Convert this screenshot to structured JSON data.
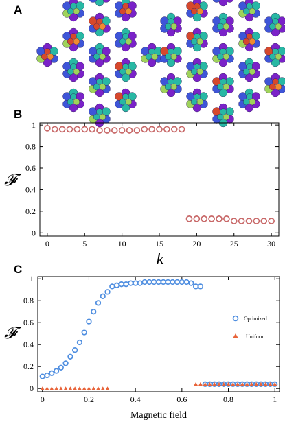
{
  "panel_a": {
    "label": "A",
    "colors": {
      "purple": "#7a22c8",
      "blue": "#3e55d8",
      "teal": "#28b8a4",
      "red": "#d6482c",
      "orange": "#f08a30",
      "green": "#9fd35a"
    }
  },
  "chart_data": [
    {
      "panel": "B",
      "type": "scatter",
      "xlabel": "k",
      "ylabel": "𝓕",
      "xlim": [
        -1,
        31
      ],
      "ylim": [
        -0.03,
        1.02
      ],
      "xticks": [
        0,
        5,
        10,
        15,
        20,
        25,
        30
      ],
      "yticks": [
        0,
        0.2,
        0.4,
        0.6,
        0.8,
        1
      ],
      "grid": false,
      "series": [
        {
          "marker": "open-circle",
          "color": "#c86868",
          "x": [
            0,
            1,
            2,
            3,
            4,
            5,
            6,
            7,
            8,
            9,
            10,
            11,
            12,
            13,
            14,
            15,
            16,
            17,
            18,
            19,
            20,
            21,
            22,
            23,
            24,
            25,
            26,
            27,
            28,
            29,
            30
          ],
          "y": [
            0.97,
            0.96,
            0.96,
            0.96,
            0.96,
            0.96,
            0.96,
            0.95,
            0.95,
            0.95,
            0.95,
            0.95,
            0.95,
            0.96,
            0.96,
            0.96,
            0.96,
            0.96,
            0.96,
            0.13,
            0.13,
            0.13,
            0.13,
            0.13,
            0.13,
            0.11,
            0.11,
            0.11,
            0.11,
            0.11,
            0.11
          ]
        }
      ]
    },
    {
      "panel": "C",
      "type": "scatter",
      "xlabel": "Magnetic field",
      "ylabel": "𝓕",
      "xlim": [
        -0.02,
        1.02
      ],
      "ylim": [
        -0.03,
        1.02
      ],
      "xticks": [
        0,
        0.2,
        0.4,
        0.6,
        0.8,
        1
      ],
      "yticks": [
        0,
        0.2,
        0.4,
        0.6,
        0.8,
        1
      ],
      "grid": false,
      "legend_position": "right",
      "series": [
        {
          "name": "Optimized",
          "marker": "open-circle",
          "color": "#4f8ee0",
          "x": [
            0,
            0.02,
            0.04,
            0.06,
            0.08,
            0.1,
            0.12,
            0.14,
            0.16,
            0.18,
            0.2,
            0.22,
            0.24,
            0.26,
            0.28,
            0.3,
            0.32,
            0.34,
            0.36,
            0.38,
            0.4,
            0.42,
            0.44,
            0.46,
            0.48,
            0.5,
            0.52,
            0.54,
            0.56,
            0.58,
            0.6,
            0.62,
            0.64,
            0.66,
            0.68,
            0.7,
            0.72,
            0.74,
            0.76,
            0.78,
            0.8,
            0.82,
            0.84,
            0.86,
            0.88,
            0.9,
            0.92,
            0.94,
            0.96,
            0.98,
            1.0
          ],
          "y": [
            0.11,
            0.12,
            0.14,
            0.16,
            0.19,
            0.23,
            0.29,
            0.35,
            0.42,
            0.51,
            0.61,
            0.7,
            0.78,
            0.84,
            0.88,
            0.93,
            0.94,
            0.95,
            0.95,
            0.96,
            0.96,
            0.96,
            0.97,
            0.97,
            0.97,
            0.97,
            0.97,
            0.97,
            0.97,
            0.97,
            0.97,
            0.97,
            0.96,
            0.93,
            0.93,
            0.04,
            0.04,
            0.04,
            0.04,
            0.04,
            0.04,
            0.04,
            0.04,
            0.04,
            0.04,
            0.04,
            0.04,
            0.04,
            0.04,
            0.04,
            0.04
          ]
        },
        {
          "name": "Uniform",
          "marker": "filled-triangle",
          "color": "#e8643a",
          "x": [
            0,
            0.02,
            0.04,
            0.06,
            0.08,
            0.1,
            0.12,
            0.14,
            0.16,
            0.18,
            0.2,
            0.22,
            0.24,
            0.26,
            0.28,
            0.66,
            0.68,
            0.7,
            0.72,
            0.74,
            0.76,
            0.78,
            0.8,
            0.82,
            0.84,
            0.86,
            0.88,
            0.9,
            0.92,
            0.94,
            0.96,
            0.98,
            1.0
          ],
          "y": [
            0,
            0,
            0,
            0,
            0,
            0,
            0,
            0,
            0,
            0,
            0,
            0,
            0,
            0,
            0,
            0.04,
            0.04,
            0.04,
            0.04,
            0.04,
            0.04,
            0.04,
            0.04,
            0.04,
            0.04,
            0.04,
            0.04,
            0.04,
            0.04,
            0.04,
            0.04,
            0.04,
            0.04
          ]
        }
      ]
    }
  ]
}
